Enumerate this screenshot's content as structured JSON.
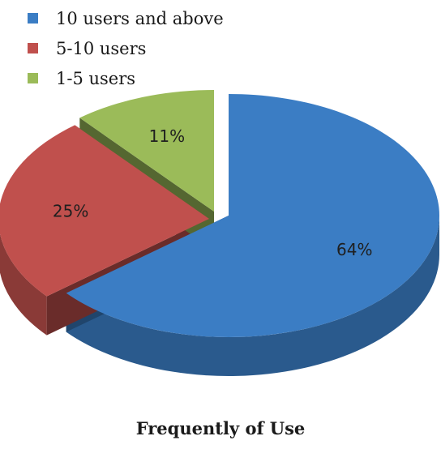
{
  "chart_data": {
    "type": "pie",
    "title": "Frequently of Use",
    "legend_position": "top-left",
    "slices": [
      {
        "label": "10 users and above",
        "value": 64,
        "value_label": "64%",
        "color": "#3b7dc4"
      },
      {
        "label": "5-10 users",
        "value": 25,
        "value_label": "25%",
        "color": "#c0504d"
      },
      {
        "label": "1-5 users",
        "value": 11,
        "value_label": "11%",
        "color": "#9bbb59"
      }
    ]
  }
}
